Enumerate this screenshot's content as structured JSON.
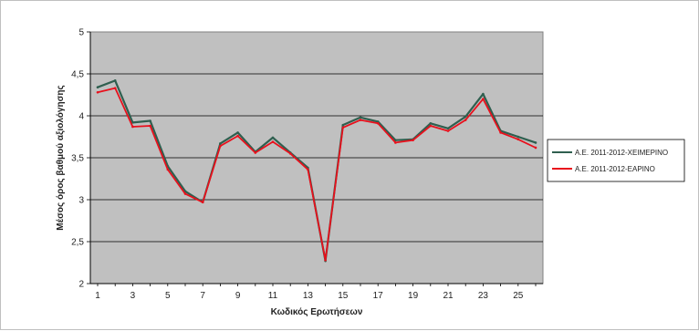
{
  "chart_data": {
    "type": "line",
    "xlabel": "Κωδικός Ερωτήσεων",
    "ylabel": "Μέσος όρος βαθμού αξιολόγησης",
    "ylim": [
      2,
      5
    ],
    "yticks": [
      "2",
      "2,5",
      "3",
      "3,5",
      "4",
      "4,5",
      "5"
    ],
    "xlim": [
      1,
      26
    ],
    "xticks": [
      "1",
      "3",
      "5",
      "7",
      "9",
      "11",
      "13",
      "15",
      "17",
      "19",
      "21",
      "23",
      "25"
    ],
    "x": [
      1,
      2,
      3,
      4,
      5,
      6,
      7,
      8,
      9,
      10,
      11,
      12,
      13,
      14,
      15,
      16,
      17,
      18,
      19,
      20,
      21,
      22,
      23,
      24,
      25,
      26
    ],
    "grid": "horizontal",
    "legend_position": "right",
    "plot_background": "#c0c0c0",
    "series": [
      {
        "name": "Α.Ε. 2011-2012-ΧΕΙΜΕΡΙΝΟ",
        "color": "#2f5f4f",
        "values": [
          4.34,
          4.42,
          3.92,
          3.94,
          3.4,
          3.1,
          2.97,
          3.67,
          3.8,
          3.57,
          3.74,
          3.56,
          3.38,
          2.27,
          3.89,
          3.98,
          3.93,
          3.71,
          3.72,
          3.91,
          3.85,
          3.99,
          4.26,
          3.82,
          3.75,
          3.68
        ]
      },
      {
        "name": "Α.Ε. 2011-2012-ΕΑΡΙΝΟ",
        "color": "#e8101c",
        "values": [
          4.28,
          4.33,
          3.87,
          3.88,
          3.36,
          3.07,
          2.97,
          3.64,
          3.76,
          3.56,
          3.69,
          3.55,
          3.36,
          2.28,
          3.86,
          3.95,
          3.91,
          3.68,
          3.71,
          3.88,
          3.82,
          3.95,
          4.2,
          3.8,
          3.72,
          3.62
        ]
      }
    ]
  }
}
